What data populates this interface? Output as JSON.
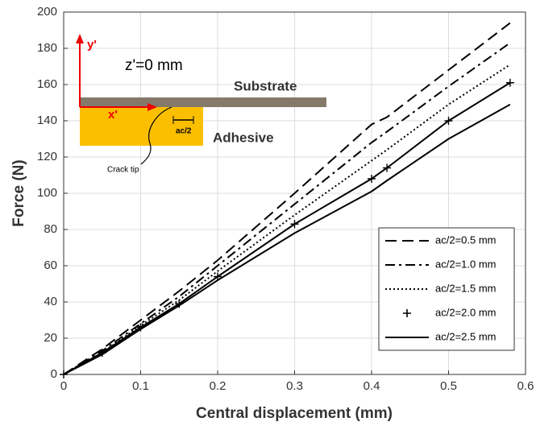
{
  "chart_data": {
    "type": "line",
    "x_label": "Central displacement (mm)",
    "y_label": "Force (N)",
    "x": [
      0,
      0.05,
      0.1,
      0.15,
      0.2,
      0.3,
      0.4,
      0.42,
      0.5,
      0.58
    ],
    "series": [
      {
        "name": "ac/2=0.5 mm",
        "color": "#000000",
        "style": "dashed",
        "values": [
          0,
          14,
          30,
          46,
          63,
          100,
          138,
          142,
          168,
          194
        ]
      },
      {
        "name": "ac/2=1.0 mm",
        "color": "#000000",
        "style": "dashdot",
        "values": [
          0,
          13,
          28,
          43,
          60,
          94,
          128,
          134,
          159,
          183
        ]
      },
      {
        "name": "ac/2=1.5 mm",
        "color": "#000000",
        "style": "dotted",
        "values": [
          0,
          12,
          27,
          41,
          57,
          88,
          118,
          124,
          149,
          171
        ]
      },
      {
        "name": "ac/2=2.0 mm",
        "color": "#000000",
        "style": "plus",
        "values": [
          0,
          12,
          26,
          39,
          54,
          83,
          108,
          114,
          140,
          161
        ]
      },
      {
        "name": "ac/2=2.5 mm",
        "color": "#000000",
        "style": "solid",
        "values": [
          0,
          11,
          25,
          38,
          52,
          78,
          101,
          107,
          130,
          149
        ]
      }
    ],
    "xlim": [
      0,
      0.6
    ],
    "xticks": [
      0,
      0.1,
      0.2,
      0.3,
      0.4,
      0.5,
      0.6
    ],
    "ylim": [
      0,
      200
    ],
    "yticks": [
      0,
      20,
      40,
      60,
      80,
      100,
      120,
      140,
      160,
      180,
      200
    ],
    "grid": true,
    "legend": "lower right",
    "annotations": [
      "y'",
      "z'=0 mm",
      "Substrate",
      "x'",
      "ac/2",
      "Adhesive",
      "Crack tip"
    ]
  }
}
